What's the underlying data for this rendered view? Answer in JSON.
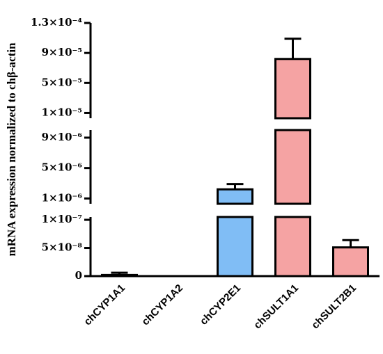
{
  "chart_data": {
    "type": "bar",
    "y_label": "mRNA expression normalized to chβ-actin",
    "categories": [
      "chCYP1A1",
      "chCYP1A2",
      "chCYP2E1",
      "chSULT1A1",
      "chSULT2B1"
    ],
    "values": [
      2e-09,
      0,
      2.2e-06,
      8.2e-05,
      5.1e-08
    ],
    "errors": [
      4e-09,
      0,
      7e-07,
      2.7e-05,
      1.3e-08
    ],
    "colors": [
      "#ffffff",
      "#ffffff",
      "#80bdf5",
      "#f5a3a3",
      "#f5a3a3"
    ],
    "y_segments": [
      {
        "ylim": [
          0,
          1.05e-07
        ],
        "yticks": [
          {
            "value": 0,
            "label": "0"
          },
          {
            "value": 5e-08,
            "label": "5×10⁻⁸"
          },
          {
            "value": 1e-07,
            "label": "1×10⁻⁷"
          }
        ]
      },
      {
        "ylim": [
          3e-07,
          1e-05
        ],
        "yticks": [
          {
            "value": 1e-06,
            "label": "1×10⁻⁶"
          },
          {
            "value": 5e-06,
            "label": "5×10⁻⁶"
          },
          {
            "value": 9e-06,
            "label": "9×10⁻⁶"
          }
        ]
      },
      {
        "ylim": [
          3e-06,
          0.00013
        ],
        "yticks": [
          {
            "value": 1e-05,
            "label": "1×10⁻⁵"
          },
          {
            "value": 5e-05,
            "label": "5×10⁻⁵"
          },
          {
            "value": 9e-05,
            "label": "9×10⁻⁵"
          },
          {
            "value": 0.00013,
            "label": "1.3×10⁻⁴"
          }
        ]
      }
    ]
  }
}
